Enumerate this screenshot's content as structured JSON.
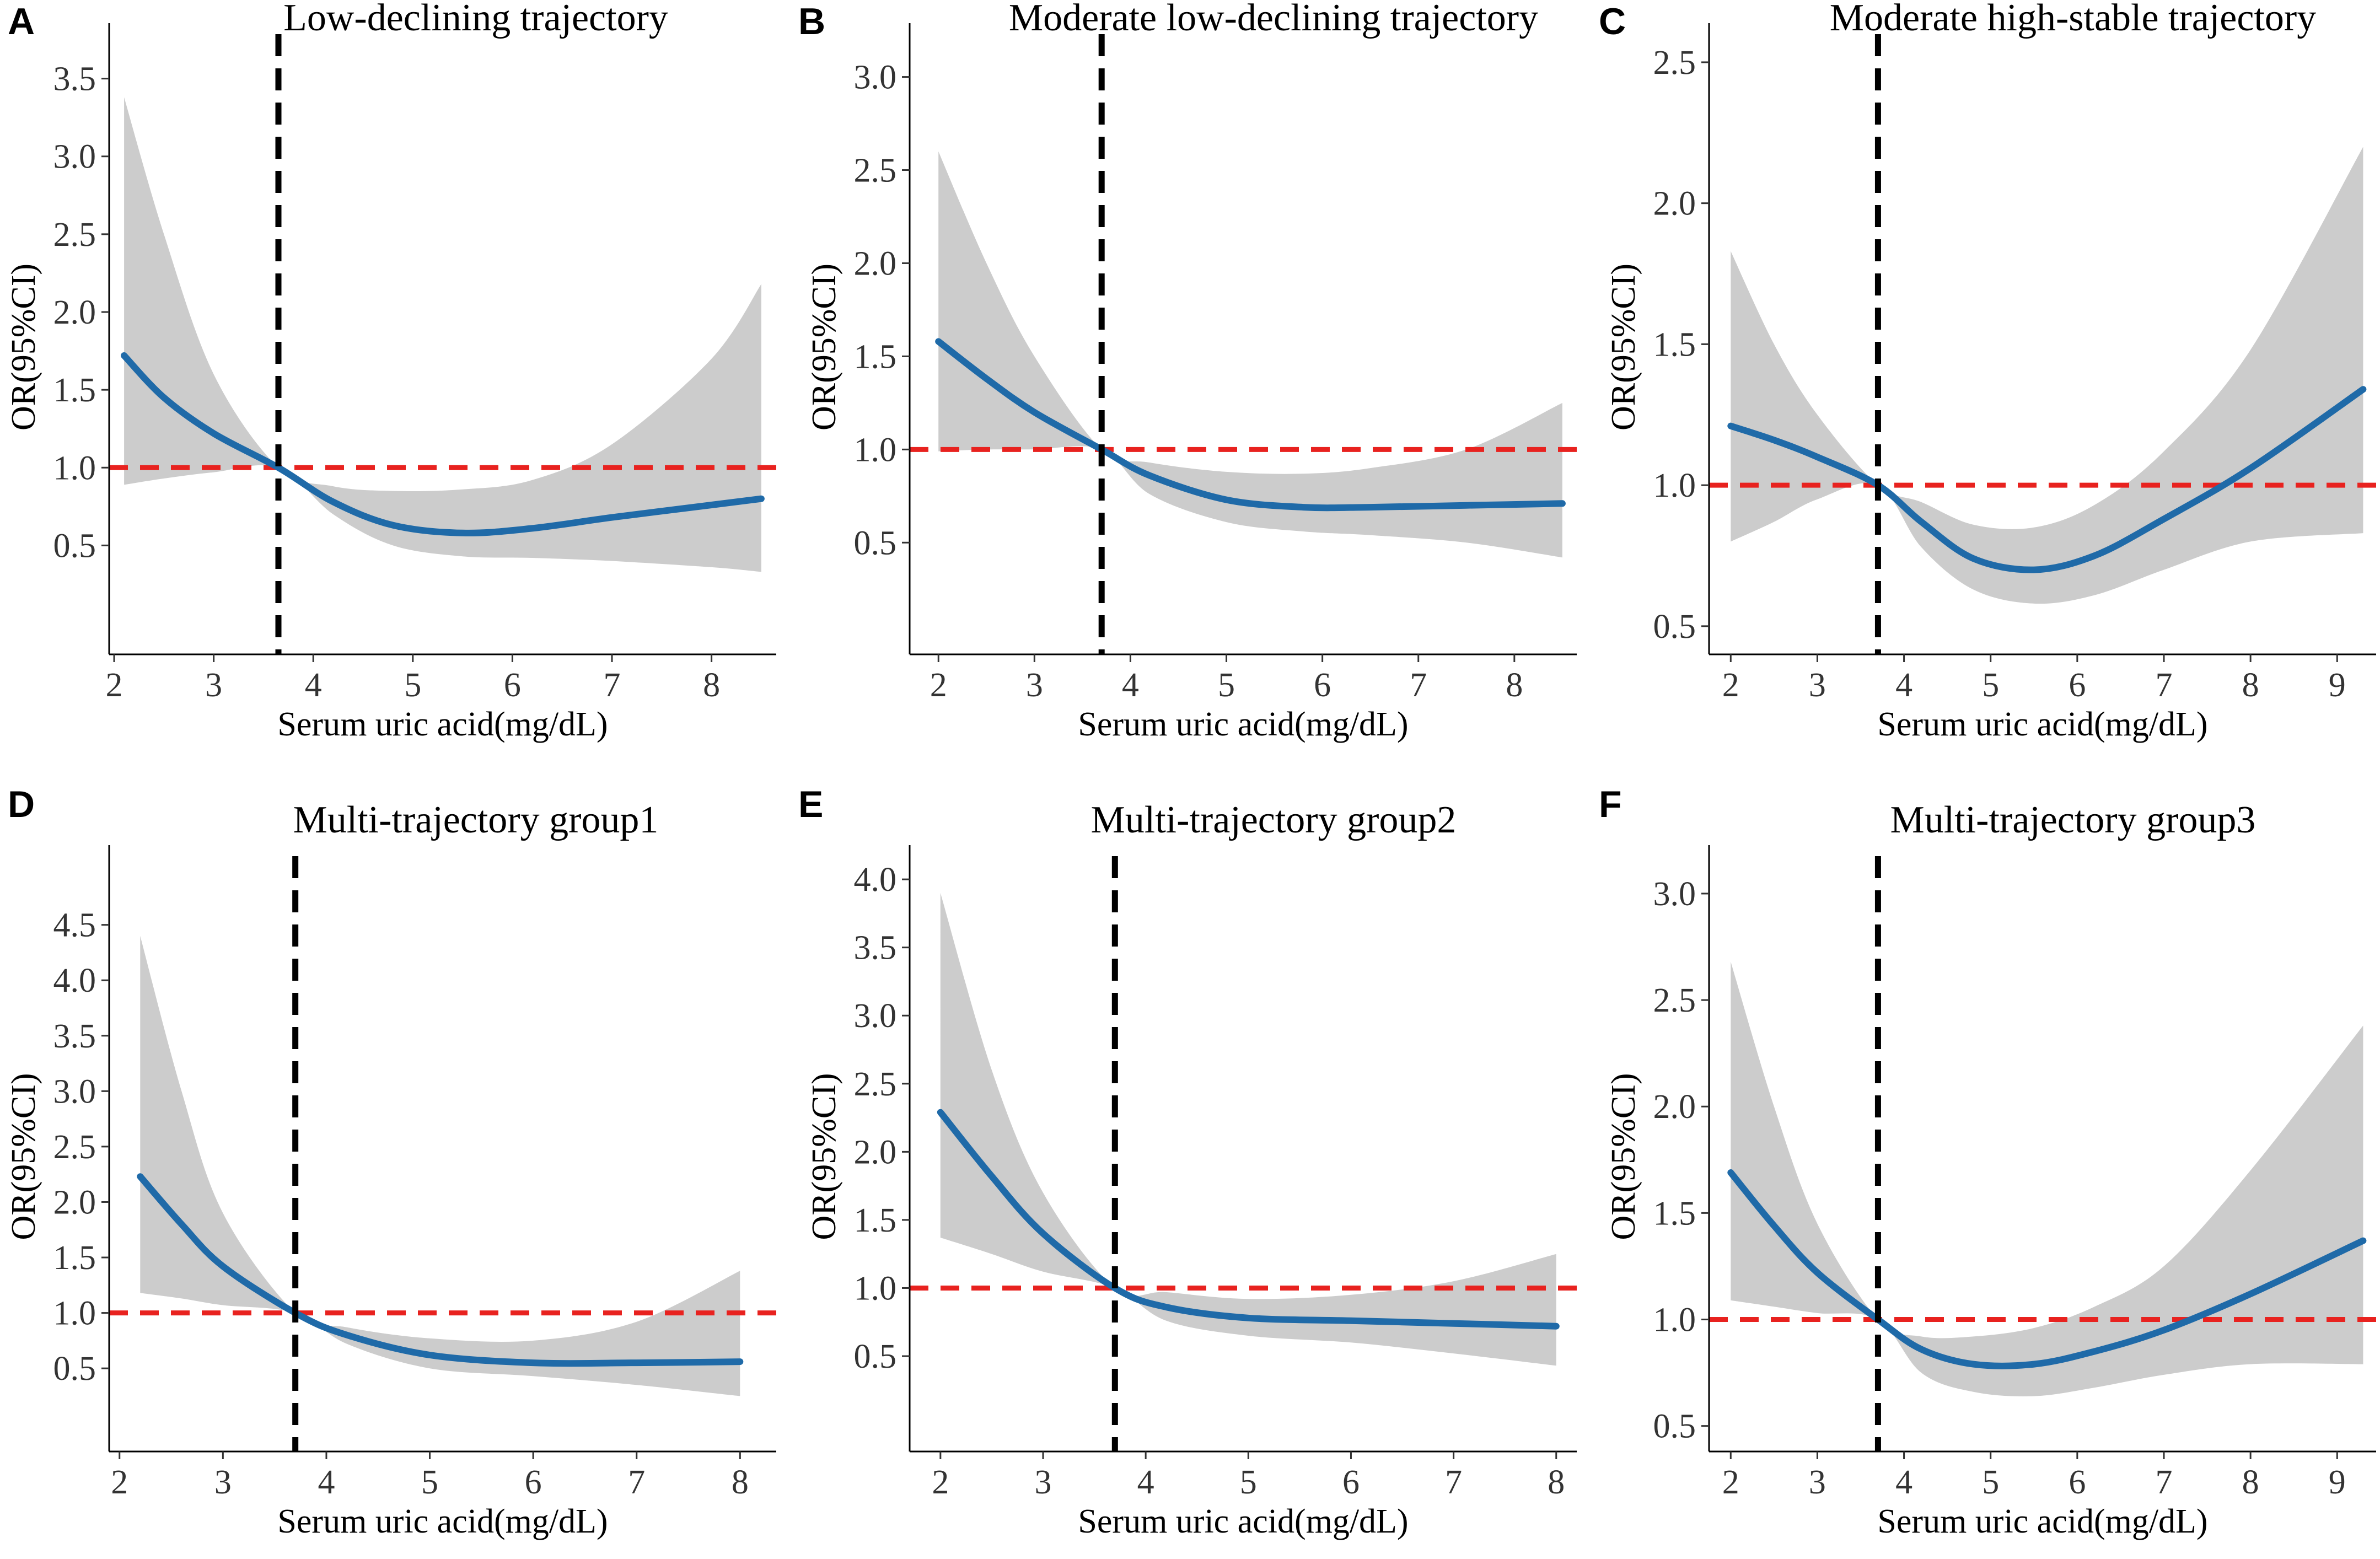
{
  "colors": {
    "band": "#cccccc",
    "curve": "#1f6aa8",
    "reference_h": "#e8221f",
    "reference_v": "#000000"
  },
  "chart_data": [
    {
      "type": "line",
      "panel": "A",
      "title": "Low-declining trajectory",
      "xlabel": "Serum uric acid(mg/dL)",
      "ylabel": "OR(95%CI)",
      "xlim": [
        1.95,
        8.65
      ],
      "ylim": [
        -0.2,
        3.75
      ],
      "xticks": [
        "2",
        "3",
        "4",
        "5",
        "6",
        "7",
        "8"
      ],
      "yticks": [
        "0.5",
        "1.0",
        "1.5",
        "2.0",
        "2.5",
        "3.0",
        "3.5"
      ],
      "reference_y": 1.0,
      "reference_x": 3.65,
      "series": [
        {
          "name": "OR",
          "x": [
            2.1,
            2.5,
            3.0,
            3.65,
            4.2,
            4.8,
            5.5,
            6.2,
            7.0,
            8.0,
            8.5
          ],
          "values": [
            1.72,
            1.45,
            1.22,
            1.0,
            0.78,
            0.63,
            0.58,
            0.61,
            0.68,
            0.76,
            0.8
          ]
        },
        {
          "name": "lower 95% CI",
          "x": [
            2.1,
            2.5,
            3.0,
            3.65,
            4.2,
            4.8,
            5.5,
            6.2,
            7.0,
            8.0,
            8.5
          ],
          "values": [
            0.89,
            0.93,
            0.97,
            1.0,
            0.7,
            0.5,
            0.43,
            0.42,
            0.4,
            0.36,
            0.33
          ]
        },
        {
          "name": "upper 95% CI",
          "x": [
            2.1,
            2.5,
            3.0,
            3.65,
            4.2,
            4.8,
            5.5,
            6.2,
            7.0,
            8.0,
            8.5
          ],
          "values": [
            3.38,
            2.5,
            1.6,
            1.0,
            0.88,
            0.85,
            0.86,
            0.92,
            1.15,
            1.7,
            2.18
          ]
        }
      ]
    },
    {
      "type": "line",
      "panel": "B",
      "title": "Moderate low-declining trajectory",
      "xlabel": "Serum uric acid(mg/dL)",
      "ylabel": "OR(95%CI)",
      "xlim": [
        1.7,
        8.65
      ],
      "ylim": [
        -0.1,
        3.2
      ],
      "xticks": [
        "2",
        "3",
        "4",
        "5",
        "6",
        "7",
        "8"
      ],
      "yticks": [
        "0.5",
        "1.0",
        "1.5",
        "2.0",
        "2.5",
        "3.0"
      ],
      "reference_y": 1.0,
      "reference_x": 3.7,
      "series": [
        {
          "name": "OR",
          "x": [
            2.0,
            2.5,
            3.0,
            3.7,
            4.2,
            5.0,
            5.8,
            6.5,
            7.5,
            8.5
          ],
          "values": [
            1.58,
            1.38,
            1.2,
            1.0,
            0.86,
            0.73,
            0.69,
            0.69,
            0.7,
            0.71
          ]
        },
        {
          "name": "lower 95% CI",
          "x": [
            2.0,
            2.5,
            3.0,
            3.7,
            4.2,
            5.0,
            5.8,
            6.5,
            7.5,
            8.5
          ],
          "values": [
            0.99,
            1.0,
            1.0,
            1.0,
            0.76,
            0.61,
            0.56,
            0.54,
            0.5,
            0.42
          ]
        },
        {
          "name": "upper 95% CI",
          "x": [
            2.0,
            2.5,
            3.0,
            3.7,
            4.2,
            5.0,
            5.8,
            6.5,
            7.5,
            8.5
          ],
          "values": [
            2.6,
            2.0,
            1.5,
            1.0,
            0.93,
            0.88,
            0.87,
            0.9,
            1.0,
            1.25
          ]
        }
      ]
    },
    {
      "type": "line",
      "panel": "C",
      "title": "Moderate high-stable trajectory",
      "xlabel": "Serum uric acid(mg/dL)",
      "ylabel": "OR(95%CI)",
      "xlim": [
        1.75,
        9.45
      ],
      "ylim": [
        0.4,
        2.58
      ],
      "xticks": [
        "2",
        "3",
        "4",
        "5",
        "6",
        "7",
        "8",
        "9"
      ],
      "yticks": [
        "0.5",
        "1.0",
        "1.5",
        "2.0",
        "2.5"
      ],
      "reference_y": 1.0,
      "reference_x": 3.7,
      "series": [
        {
          "name": "OR",
          "x": [
            2.0,
            2.5,
            3.0,
            3.7,
            4.2,
            4.8,
            5.5,
            6.2,
            7.0,
            8.0,
            9.3
          ],
          "values": [
            1.21,
            1.16,
            1.1,
            1.0,
            0.87,
            0.74,
            0.7,
            0.75,
            0.88,
            1.06,
            1.34
          ]
        },
        {
          "name": "lower 95% CI",
          "x": [
            2.0,
            2.5,
            3.0,
            3.7,
            4.2,
            4.8,
            5.5,
            6.2,
            7.0,
            8.0,
            9.3
          ],
          "values": [
            0.8,
            0.87,
            0.95,
            1.0,
            0.78,
            0.63,
            0.58,
            0.61,
            0.7,
            0.8,
            0.83
          ]
        },
        {
          "name": "upper 95% CI",
          "x": [
            2.0,
            2.5,
            3.0,
            3.7,
            4.2,
            4.8,
            5.5,
            6.2,
            7.0,
            8.0,
            9.3
          ],
          "values": [
            1.83,
            1.5,
            1.25,
            1.0,
            0.94,
            0.86,
            0.85,
            0.93,
            1.12,
            1.48,
            2.2
          ]
        }
      ]
    },
    {
      "type": "line",
      "panel": "D",
      "title": "Multi-trajectory group1",
      "xlabel": "Serum uric acid(mg/dL)",
      "ylabel": "OR(95%CI)",
      "xlim": [
        1.9,
        8.35
      ],
      "ylim": [
        -0.25,
        5.07
      ],
      "xticks": [
        "2",
        "3",
        "4",
        "5",
        "6",
        "7",
        "8"
      ],
      "yticks": [
        "0.5",
        "1.0",
        "1.5",
        "2.0",
        "2.5",
        "3.0",
        "3.5",
        "4.0",
        "4.5"
      ],
      "reference_y": 1.0,
      "reference_x": 3.7,
      "series": [
        {
          "name": "OR",
          "x": [
            2.2,
            2.6,
            3.0,
            3.7,
            4.2,
            5.0,
            6.0,
            7.0,
            8.0
          ],
          "values": [
            2.23,
            1.8,
            1.42,
            1.0,
            0.8,
            0.62,
            0.55,
            0.55,
            0.56
          ]
        },
        {
          "name": "lower 95% CI",
          "x": [
            2.2,
            2.6,
            3.0,
            3.7,
            4.2,
            5.0,
            6.0,
            7.0,
            8.0
          ],
          "values": [
            1.18,
            1.13,
            1.07,
            1.0,
            0.72,
            0.5,
            0.43,
            0.35,
            0.25
          ]
        },
        {
          "name": "upper 95% CI",
          "x": [
            2.2,
            2.6,
            3.0,
            3.7,
            4.2,
            5.0,
            6.0,
            7.0,
            8.0
          ],
          "values": [
            4.4,
            3.0,
            1.9,
            1.0,
            0.87,
            0.77,
            0.75,
            0.92,
            1.38
          ]
        }
      ]
    },
    {
      "type": "line",
      "panel": "E",
      "title": "Multi-trajectory group2",
      "xlabel": "Serum uric acid(mg/dL)",
      "ylabel": "OR(95%CI)",
      "xlim": [
        1.7,
        8.2
      ],
      "ylim": [
        -0.2,
        4.13
      ],
      "xticks": [
        "2",
        "3",
        "4",
        "5",
        "6",
        "7",
        "8"
      ],
      "yticks": [
        "0.5",
        "1.0",
        "1.5",
        "2.0",
        "2.5",
        "3.0",
        "3.5",
        "4.0"
      ],
      "reference_y": 1.0,
      "reference_x": 3.7,
      "series": [
        {
          "name": "OR",
          "x": [
            2.0,
            2.5,
            3.0,
            3.7,
            4.2,
            5.0,
            6.0,
            7.0,
            8.0
          ],
          "values": [
            2.29,
            1.82,
            1.4,
            1.0,
            0.86,
            0.78,
            0.76,
            0.74,
            0.72
          ]
        },
        {
          "name": "lower 95% CI",
          "x": [
            2.0,
            2.5,
            3.0,
            3.7,
            4.2,
            5.0,
            6.0,
            7.0,
            8.0
          ],
          "values": [
            1.37,
            1.25,
            1.12,
            1.0,
            0.76,
            0.65,
            0.6,
            0.52,
            0.43
          ]
        },
        {
          "name": "upper 95% CI",
          "x": [
            2.0,
            2.5,
            3.0,
            3.7,
            4.2,
            5.0,
            6.0,
            7.0,
            8.0
          ],
          "values": [
            3.9,
            2.6,
            1.7,
            1.0,
            0.97,
            0.92,
            0.95,
            1.05,
            1.25
          ]
        }
      ]
    },
    {
      "type": "line",
      "panel": "F",
      "title": "Multi-trajectory group3",
      "xlabel": "Serum uric acid(mg/dL)",
      "ylabel": "OR(95%CI)",
      "xlim": [
        1.75,
        9.45
      ],
      "ylim": [
        0.38,
        3.15
      ],
      "xticks": [
        "2",
        "3",
        "4",
        "5",
        "6",
        "7",
        "8",
        "9"
      ],
      "yticks": [
        "0.5",
        "1.0",
        "1.5",
        "2.0",
        "2.5",
        "3.0"
      ],
      "reference_y": 1.0,
      "reference_x": 3.7,
      "series": [
        {
          "name": "OR",
          "x": [
            2.0,
            2.5,
            3.0,
            3.7,
            4.2,
            4.8,
            5.5,
            6.2,
            7.0,
            8.0,
            9.3
          ],
          "values": [
            1.69,
            1.44,
            1.22,
            1.0,
            0.86,
            0.79,
            0.79,
            0.85,
            0.95,
            1.12,
            1.37
          ]
        },
        {
          "name": "lower 95% CI",
          "x": [
            2.0,
            2.5,
            3.0,
            3.7,
            4.2,
            4.8,
            5.5,
            6.2,
            7.0,
            8.0,
            9.3
          ],
          "values": [
            1.09,
            1.06,
            1.03,
            1.0,
            0.75,
            0.66,
            0.64,
            0.68,
            0.74,
            0.79,
            0.79
          ]
        },
        {
          "name": "upper 95% CI",
          "x": [
            2.0,
            2.5,
            3.0,
            3.7,
            4.2,
            4.8,
            5.5,
            6.2,
            7.0,
            8.0,
            9.3
          ],
          "values": [
            2.68,
            2.0,
            1.45,
            1.0,
            0.92,
            0.92,
            0.96,
            1.06,
            1.25,
            1.7,
            2.38
          ]
        }
      ]
    }
  ]
}
